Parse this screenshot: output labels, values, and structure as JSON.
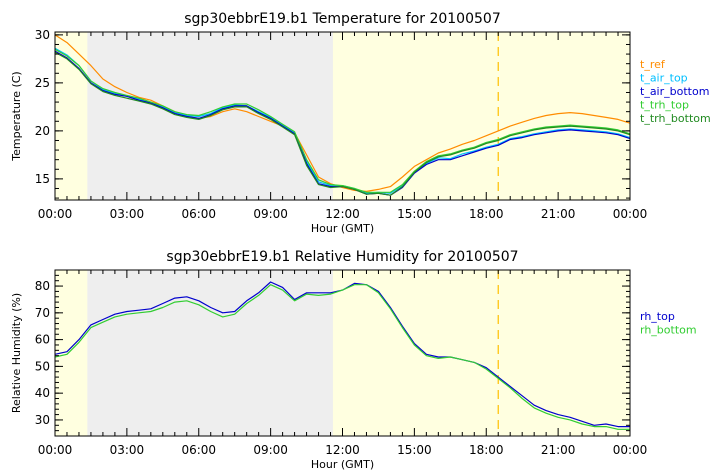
{
  "chart_data": [
    {
      "type": "line",
      "title": "sgp30ebbrE19.b1 Temperature for 20100507",
      "xlabel": "Hour (GMT)",
      "ylabel": "Temperature (C)",
      "xlim": [
        0,
        24
      ],
      "ylim": [
        12.8,
        30.3
      ],
      "x_ticks": [
        0,
        3,
        6,
        9,
        12,
        15,
        18,
        21,
        24
      ],
      "x_tick_labels": [
        "00:00",
        "03:00",
        "06:00",
        "09:00",
        "12:00",
        "15:00",
        "18:00",
        "21:00",
        "00:00"
      ],
      "y_ticks": [
        15,
        20,
        25,
        30
      ],
      "y_tick_labels": [
        "15",
        "20",
        "25",
        "30"
      ],
      "night_shading": [
        1.35,
        11.6
      ],
      "marker_hour": 18.5,
      "legend_position": "right",
      "x": [
        0,
        0.5,
        1,
        1.5,
        2,
        2.5,
        3,
        3.5,
        4,
        4.5,
        5,
        5.5,
        6,
        6.5,
        7,
        7.5,
        8,
        8.5,
        9,
        9.5,
        10,
        10.5,
        11,
        11.5,
        12,
        12.5,
        13,
        13.5,
        14,
        14.5,
        15,
        15.5,
        16,
        16.5,
        17,
        17.5,
        18,
        18.5,
        19,
        19.5,
        20,
        20.5,
        21,
        21.5,
        22,
        22.5,
        23,
        23.5,
        24
      ],
      "series": [
        {
          "name": "t_ref",
          "color": "#ff8c00",
          "values": [
            30.0,
            29.2,
            28.0,
            26.8,
            25.4,
            24.6,
            24.0,
            23.5,
            23.2,
            22.6,
            22.0,
            21.5,
            21.3,
            21.5,
            22.0,
            22.3,
            22.0,
            21.5,
            21.0,
            20.5,
            19.8,
            17.5,
            15.2,
            14.5,
            14.1,
            13.8,
            13.7,
            13.9,
            14.2,
            15.2,
            16.3,
            17.0,
            17.7,
            18.1,
            18.6,
            19.0,
            19.5,
            20.0,
            20.5,
            20.9,
            21.3,
            21.6,
            21.8,
            21.9,
            21.8,
            21.6,
            21.4,
            21.2,
            20.8
          ]
        },
        {
          "name": "t_air_top",
          "color": "#00bfff",
          "values": [
            28.6,
            27.9,
            26.8,
            25.2,
            24.3,
            23.9,
            23.6,
            23.3,
            22.9,
            22.5,
            21.9,
            21.6,
            21.5,
            21.8,
            22.4,
            22.7,
            22.6,
            22.0,
            21.4,
            20.6,
            19.8,
            16.8,
            14.7,
            14.3,
            14.3,
            14.0,
            13.5,
            13.6,
            13.5,
            14.3,
            15.7,
            16.6,
            17.2,
            17.1,
            17.6,
            17.9,
            18.3,
            18.6,
            19.2,
            19.4,
            19.7,
            19.9,
            20.1,
            20.2,
            20.1,
            20.0,
            19.9,
            19.7,
            19.3
          ]
        },
        {
          "name": "t_air_bottom",
          "color": "#0000cd",
          "values": [
            28.3,
            27.6,
            26.5,
            25.0,
            24.2,
            23.8,
            23.6,
            23.2,
            22.9,
            22.4,
            21.8,
            21.5,
            21.3,
            21.7,
            22.3,
            22.6,
            22.6,
            21.9,
            21.3,
            20.5,
            19.7,
            16.6,
            14.5,
            14.2,
            14.2,
            13.9,
            13.4,
            13.5,
            13.3,
            14.1,
            15.6,
            16.5,
            17.0,
            17.0,
            17.4,
            17.8,
            18.2,
            18.5,
            19.1,
            19.3,
            19.6,
            19.8,
            20.0,
            20.1,
            20.0,
            19.9,
            19.8,
            19.6,
            19.2
          ]
        },
        {
          "name": "t_trh_top",
          "color": "#32cd32",
          "values": [
            28.5,
            27.8,
            26.8,
            25.2,
            24.4,
            24.0,
            23.7,
            23.4,
            23.0,
            22.6,
            22.0,
            21.7,
            21.6,
            22.0,
            22.5,
            22.8,
            22.8,
            22.2,
            21.5,
            20.7,
            19.9,
            17.0,
            14.9,
            14.4,
            14.3,
            14.0,
            13.6,
            13.6,
            13.6,
            14.4,
            15.8,
            16.8,
            17.4,
            17.6,
            18.0,
            18.3,
            18.8,
            19.1,
            19.6,
            19.9,
            20.2,
            20.4,
            20.5,
            20.6,
            20.5,
            20.4,
            20.3,
            20.1,
            19.7
          ]
        },
        {
          "name": "t_trh_bottom",
          "color": "#228b22",
          "values": [
            28.2,
            27.5,
            26.4,
            24.9,
            24.1,
            23.7,
            23.4,
            23.1,
            22.8,
            22.3,
            21.7,
            21.4,
            21.2,
            21.6,
            22.2,
            22.5,
            22.5,
            21.8,
            21.2,
            20.4,
            19.6,
            16.4,
            14.4,
            14.1,
            14.2,
            13.9,
            13.4,
            13.5,
            13.3,
            14.2,
            15.7,
            16.7,
            17.3,
            17.5,
            17.9,
            18.2,
            18.7,
            19.0,
            19.5,
            19.8,
            20.1,
            20.3,
            20.4,
            20.5,
            20.4,
            20.3,
            20.2,
            20.0,
            19.6
          ]
        }
      ]
    },
    {
      "type": "line",
      "title": "sgp30ebbrE19.b1 Relative Humidity for 20100507",
      "xlabel": "Hour (GMT)",
      "ylabel": "Relative Humidity (%)",
      "xlim": [
        0,
        24
      ],
      "ylim": [
        24,
        86
      ],
      "x_ticks": [
        0,
        3,
        6,
        9,
        12,
        15,
        18,
        21,
        24
      ],
      "x_tick_labels": [
        "00:00",
        "03:00",
        "06:00",
        "09:00",
        "12:00",
        "15:00",
        "18:00",
        "21:00",
        "00:00"
      ],
      "y_ticks": [
        30,
        40,
        50,
        60,
        70,
        80
      ],
      "y_tick_labels": [
        "30",
        "40",
        "50",
        "60",
        "70",
        "80"
      ],
      "night_shading": [
        1.35,
        11.6
      ],
      "marker_hour": 18.5,
      "legend_position": "right",
      "x": [
        0,
        0.5,
        1,
        1.5,
        2,
        2.5,
        3,
        3.5,
        4,
        4.5,
        5,
        5.5,
        6,
        6.5,
        7,
        7.5,
        8,
        8.5,
        9,
        9.5,
        10,
        10.5,
        11,
        11.5,
        12,
        12.5,
        13,
        13.5,
        14,
        14.5,
        15,
        15.5,
        16,
        16.5,
        17,
        17.5,
        18,
        18.5,
        19,
        19.5,
        20,
        20.5,
        21,
        21.5,
        22,
        22.5,
        23,
        23.5,
        24
      ],
      "series": [
        {
          "name": "rh_top",
          "color": "#0000cd",
          "values": [
            54.5,
            55.5,
            60.0,
            65.5,
            67.5,
            69.5,
            70.5,
            71.0,
            71.5,
            73.5,
            75.5,
            76.0,
            74.5,
            72.0,
            70.0,
            70.5,
            74.5,
            77.5,
            81.5,
            79.5,
            75.0,
            77.5,
            77.5,
            77.5,
            78.5,
            81.0,
            80.5,
            78.0,
            72.0,
            65.0,
            58.5,
            54.5,
            53.5,
            53.5,
            52.5,
            51.5,
            49.5,
            46.0,
            42.5,
            39.0,
            35.5,
            33.5,
            32.0,
            31.0,
            29.5,
            28.0,
            28.5,
            27.5,
            27.5
          ]
        },
        {
          "name": "rh_bottom",
          "color": "#32cd32",
          "values": [
            53.5,
            54.5,
            59.0,
            64.5,
            66.5,
            68.5,
            69.5,
            70.0,
            70.5,
            72.0,
            74.0,
            74.5,
            73.0,
            70.5,
            68.5,
            69.5,
            73.5,
            76.5,
            80.5,
            78.5,
            74.5,
            77.0,
            76.5,
            77.0,
            78.5,
            80.5,
            80.5,
            77.5,
            71.5,
            64.5,
            58.0,
            54.0,
            53.0,
            53.5,
            52.5,
            51.5,
            49.0,
            45.5,
            42.0,
            38.0,
            34.5,
            32.5,
            31.0,
            30.0,
            28.5,
            27.5,
            27.5,
            26.5,
            26.5
          ]
        }
      ]
    }
  ]
}
